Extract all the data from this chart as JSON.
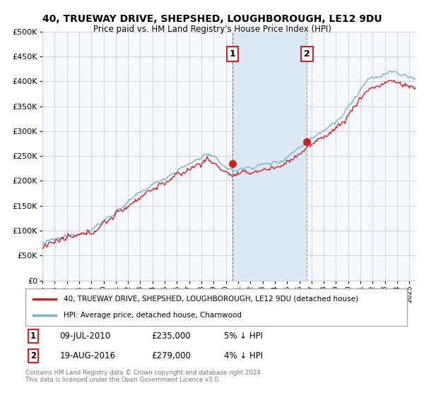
{
  "title": "40, TRUEWAY DRIVE, SHEPSHED, LOUGHBOROUGH, LE12 9DU",
  "subtitle": "Price paid vs. HM Land Registry's House Price Index (HPI)",
  "ylim": [
    0,
    500000
  ],
  "yticks": [
    0,
    50000,
    100000,
    150000,
    200000,
    250000,
    300000,
    350000,
    400000,
    450000,
    500000
  ],
  "ytick_labels": [
    "£0",
    "£50K",
    "£100K",
    "£150K",
    "£200K",
    "£250K",
    "£300K",
    "£350K",
    "£400K",
    "£450K",
    "£500K"
  ],
  "xlim_start": 1995.0,
  "xlim_end": 2025.5,
  "hpi_color": "#7ab0d4",
  "price_color": "#cc2222",
  "marker1_x": 2010.52,
  "marker1_y": 235000,
  "marker2_x": 2016.63,
  "marker2_y": 279000,
  "legend_label1": "40, TRUEWAY DRIVE, SHEPSHED, LOUGHBOROUGH, LE12 9DU (detached house)",
  "legend_label2": "HPI: Average price, detached house, Charnwood",
  "annotation1_label": "1",
  "annotation2_label": "2",
  "note1_date": "09-JUL-2010",
  "note1_price": "£235,000",
  "note1_hpi": "5% ↓ HPI",
  "note2_date": "19-AUG-2016",
  "note2_price": "£279,000",
  "note2_hpi": "4% ↓ HPI",
  "copyright": "Contains HM Land Registry data © Crown copyright and database right 2024.\nThis data is licensed under the Open Government Licence v3.0.",
  "background_color": "#ffffff",
  "plot_bg_color": "#f5f8ff",
  "shade_color": "#dde8f5",
  "grid_color": "#cccccc",
  "fig_width": 6.0,
  "fig_height": 5.6,
  "dpi": 100
}
